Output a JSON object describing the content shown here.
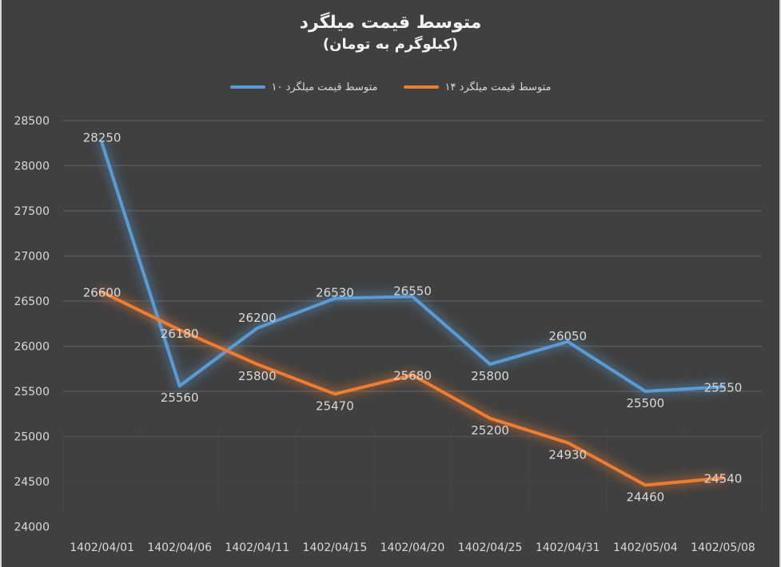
{
  "chart_data": {
    "type": "line",
    "title": "متوسط قیمت میلگرد",
    "subtitle": "(کیلوگرم به تومان)",
    "xlabel": "",
    "ylabel": "",
    "ylim": [
      24000,
      28500
    ],
    "yticks": [
      24000,
      24500,
      25000,
      25500,
      26000,
      26500,
      27000,
      27500,
      28000,
      28500
    ],
    "grid": true,
    "legend_position": "top",
    "categories": [
      "1402/04/01",
      "1402/04/06",
      "1402/04/11",
      "1402/04/15",
      "1402/04/20",
      "1402/04/25",
      "1402/04/31",
      "1402/05/04",
      "1402/05/08"
    ],
    "series": [
      {
        "name": "متوسط قیمت میلگرد ۱۰",
        "color": "#5b9bd5",
        "values": [
          28250,
          25560,
          26200,
          26530,
          26550,
          25800,
          26050,
          25500,
          25550
        ]
      },
      {
        "name": "متوسط قیمت میلگرد ۱۴",
        "color": "#ed7d31",
        "values": [
          26600,
          26180,
          25800,
          25470,
          25680,
          25200,
          24930,
          24460,
          24540
        ]
      }
    ]
  },
  "colors": {
    "background": "#404040",
    "gridline": "#595959",
    "text": "#d9d9d9",
    "title": "#f2f2f2"
  }
}
